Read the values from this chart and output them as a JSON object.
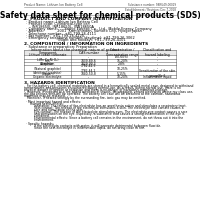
{
  "bg_color": "#ffffff",
  "header_left": "Product Name: Lithium Ion Battery Cell",
  "header_right": "Substance number: 98RU49-00019\nEstablishment / Revision: Dec.7,2018",
  "title": "Safety data sheet for chemical products (SDS)",
  "section1_title": "1. PRODUCT AND COMPANY IDENTIFICATION",
  "section1_lines": [
    "  · Product name: Lithium Ion Battery Cell",
    "  · Product code: Cylindrical-type cell",
    "       INR18650J, INR18650L, INR18650A",
    "  · Company name:      Sanyo Electric Co., Ltd., Mobile Energy Company",
    "  · Address:            2001  Kamishinden, Sumoto City, Hyogo, Japan",
    "  · Telephone number:  +81-799-26-4111",
    "  · Fax number:  +81-799-26-4120",
    "  · Emergency telephone number (daytime): +81-799-26-3062",
    "                              (Night and holiday): +81-799-26-4101"
  ],
  "section2_title": "2. COMPOSITION / INFORMATION ON INGREDIENTS",
  "section2_intro": "  · Substance or preparation: Preparation",
  "section2_sub": "    · Information about the chemical nature of product:",
  "table_headers": [
    "Component",
    "CAS number",
    "Concentration /\nConcentration range",
    "Classification and\nhazard labeling"
  ],
  "table_rows": [
    [
      "Lithium cobalt carbonate\n(LiMn·Co·Ni·O₄)",
      "-",
      "(30-60%)",
      "-"
    ],
    [
      "Iron",
      "7439-89-6",
      "15-20%",
      "-"
    ],
    [
      "Aluminum",
      "7429-90-5",
      "2-8%",
      "-"
    ],
    [
      "Graphite\n(Natural graphite)\n(Artificial graphite)",
      "7782-42-5\n7782-44-2",
      "10-25%",
      "-"
    ],
    [
      "Copper",
      "7440-50-8",
      "5-15%",
      "Sensitization of the skin\ngroup No.2"
    ],
    [
      "Organic electrolyte",
      "-",
      "10-20%",
      "Inflammable liquid"
    ]
  ],
  "section3_title": "3. HAZARDS IDENTIFICATION",
  "section3_text": [
    "   For the battery cell, chemical materials are stored in a hermetically sealed metal case, designed to withstand",
    "temperatures and pressures encountered during normal use. As a result, during normal use, there is no",
    "physical danger of ignition or explosion and there is no danger of hazardous materials leakage.",
    "   However, if exposed to a fire added mechanical shocks, decomposed, vented electrolyte whose my class use,",
    "the gas release vent will be operated. The battery cell case will be breached at the cathode, hazardous",
    "materials may be released.",
    "   Moreover, if heated strongly by the surrounding fire, ionic gas may be emitted.",
    "",
    "  · Most important hazard and effects:",
    "      Human health effects:",
    "          Inhalation: The release of the electrolyte has an anesthesia action and stimulates a respiratory tract.",
    "          Skin contact: The release of the electrolyte stimulates a skin. The electrolyte skin contact causes a",
    "          sore and stimulation on the skin.",
    "          Eye contact: The release of the electrolyte stimulates eyes. The electrolyte eye contact causes a sore",
    "          and stimulation on the eye. Especially, a substance that causes a strong inflammation of the eye is",
    "          contained.",
    "          Environmental effects: Since a battery cell remains in the environment, do not throw out it into the",
    "          environment.",
    "",
    "  · Specific hazards:",
    "          If the electrolyte contacts with water, it will generate detrimental hydrogen fluoride.",
    "          Since the seal-electrolyte is inflammable liquid, do not bring close to fire."
  ]
}
